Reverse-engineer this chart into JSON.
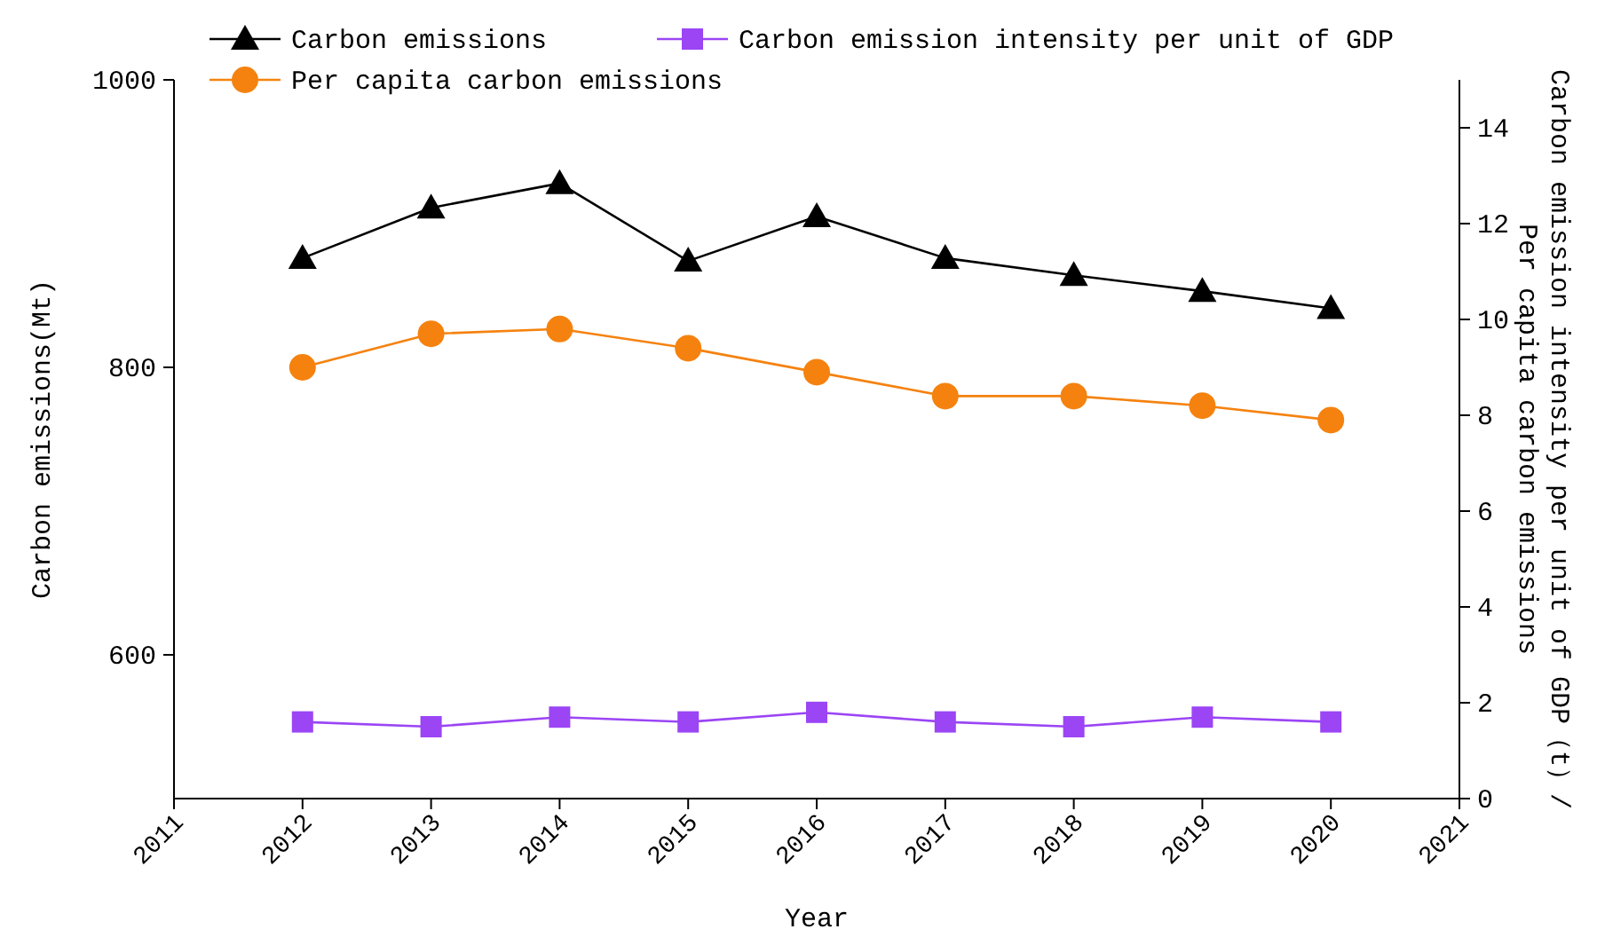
{
  "chart_data": {
    "type": "line",
    "xlabel": "Year",
    "ylabel": "Carbon emissions(Mt)",
    "y2label": "Carbon emission intensity per unit of GDP（t）/\nPer capita carbon emissions",
    "x": [
      2012,
      2013,
      2014,
      2015,
      2016,
      2017,
      2018,
      2019,
      2020
    ],
    "xlim": [
      2011,
      2021
    ],
    "xticks": [
      2011,
      2012,
      2013,
      2014,
      2015,
      2016,
      2017,
      2018,
      2019,
      2020,
      2021
    ],
    "ylim": [
      500,
      1000
    ],
    "yticks": [
      600,
      800,
      1000
    ],
    "y2lim": [
      0,
      15
    ],
    "y2ticks": [
      0,
      2,
      4,
      6,
      8,
      10,
      12,
      14
    ],
    "grid": false,
    "legend": "top",
    "line_style": "solid",
    "series": [
      {
        "name": "Carbon emissions",
        "color": "#000000",
        "marker": "triangle",
        "values": [
          876,
          911,
          928,
          874,
          905,
          876,
          864,
          853,
          841
        ]
      },
      {
        "name": "Carbon emission intensity per unit of GDP",
        "color": "#9b45f5",
        "marker": "square",
        "axis": "y2",
        "values": [
          1.6,
          1.5,
          1.7,
          1.6,
          1.8,
          1.6,
          1.5,
          1.7,
          1.6
        ]
      },
      {
        "name": "Per capita carbon emissions",
        "color": "#f5820f",
        "marker": "circle",
        "axis": "y2",
        "values": [
          9.0,
          9.7,
          9.8,
          9.4,
          8.9,
          8.4,
          8.4,
          8.2,
          7.9
        ]
      }
    ]
  }
}
